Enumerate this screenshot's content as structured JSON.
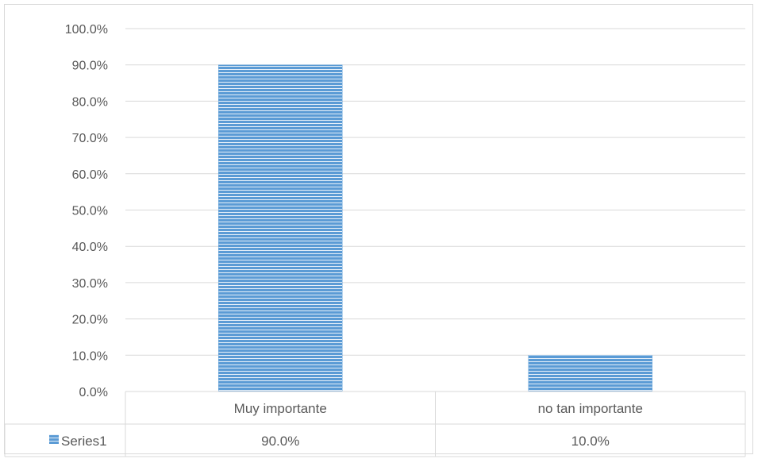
{
  "chart_data": {
    "type": "bar",
    "categories": [
      "Muy importante",
      "no tan importante"
    ],
    "series": [
      {
        "name": "Series1",
        "values": [
          0.9,
          0.1
        ],
        "value_labels": [
          "90.0%",
          "10.0%"
        ]
      }
    ],
    "y_ticks": [
      "0.0%",
      "10.0%",
      "20.0%",
      "30.0%",
      "40.0%",
      "50.0%",
      "60.0%",
      "70.0%",
      "80.0%",
      "90.0%",
      "100.0%"
    ],
    "ylim": [
      0,
      1
    ],
    "grid": true,
    "data_table": true,
    "colors": {
      "bar": "#5b9bd5",
      "bar_stripe": "#ffffff",
      "grid": "#d9d9d9",
      "text": "#595959"
    }
  }
}
